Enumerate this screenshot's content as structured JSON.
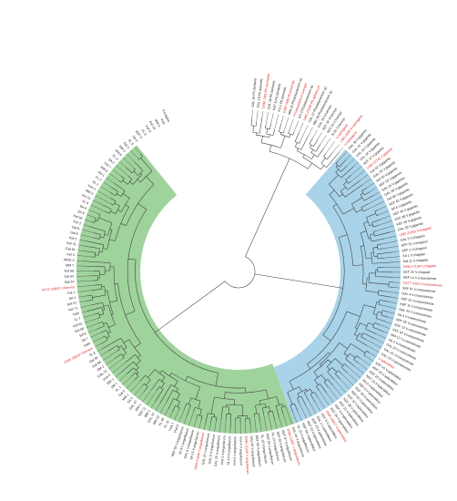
{
  "figure": {
    "type": "circular phylogenetic tree",
    "colors": {
      "green_clade": "#9fd39c",
      "blue_clade": "#a9d3e8",
      "reference_label": "#e02020",
      "isolate_label": "#1a1a1a",
      "branch": "#3a3a3a"
    }
  },
  "leaves": [
    {
      "label": "GAL 18 Ph.damsela",
      "ref": false
    },
    {
      "label": "GAL 19 Ph.damsela",
      "ref": false
    },
    {
      "label": "DSM 7482 Ph.damselae",
      "ref": true
    },
    {
      "label": "GAL 28 Ph.damsela",
      "ref": false
    },
    {
      "label": "KEF 8 Ph.damsela",
      "ref": false
    },
    {
      "label": "KS 2 Ph.damsela",
      "ref": false
    },
    {
      "label": "DSM 7483 Ph.piscicida",
      "ref": true
    },
    {
      "label": "MM 22 Photobacterium sp.",
      "ref": false
    },
    {
      "label": "Photobacterium swingsii",
      "ref": true
    },
    {
      "label": "KS 3 Photobacterium sp.",
      "ref": false
    },
    {
      "label": "LMG 25296 Ph.aphoticum",
      "ref": true
    },
    {
      "label": "GAL 12 Photobacterium sp.",
      "ref": false
    },
    {
      "label": "MM 19 Photobacterium sp.",
      "ref": false
    },
    {
      "label": "GAL 16 V.harveyi",
      "ref": false
    },
    {
      "label": "KEF 32 V.harveyi",
      "ref": false
    },
    {
      "label": "KEF 24 V.harveyi",
      "ref": false
    },
    {
      "label": "Al 35 V.harveyi",
      "ref": false
    },
    {
      "label": "V.natriegens",
      "ref": true
    },
    {
      "label": "LMG 2260 V.natriegens",
      "ref": true
    },
    {
      "label": "V.natriegens",
      "ref": true
    },
    {
      "label": "GAL 33 V.gigantis",
      "ref": false
    },
    {
      "label": "GAL 41 V.gigantis",
      "ref": false
    },
    {
      "label": "GAL 26 V.gigantis",
      "ref": false
    },
    {
      "label": "GAL 34 V.gigantis",
      "ref": false
    },
    {
      "label": "KEF 37 V.gigantis",
      "ref": false
    },
    {
      "label": "LMG 22741 V.gigantis",
      "ref": true
    },
    {
      "label": "Gal 42 V.gigantis",
      "ref": false
    },
    {
      "label": "GAL 35 V.gigantis",
      "ref": false
    },
    {
      "label": "Kef 30 V.gigantis",
      "ref": false
    },
    {
      "label": "KEF 53 V.gigantis",
      "ref": false
    },
    {
      "label": "GAL 24 V.gigantis",
      "ref": false
    },
    {
      "label": "GAL 50 V.gigantis",
      "ref": false
    },
    {
      "label": "Gal 48 V.gigantis",
      "ref": false
    },
    {
      "label": "KEF 43 V.gigantis",
      "ref": false
    },
    {
      "label": "SA 5 V.gigantis",
      "ref": false
    },
    {
      "label": "KEF 44 V.gigantis",
      "ref": false
    },
    {
      "label": "KEF 38 V.gigantis",
      "ref": false
    },
    {
      "label": "KEF 39 V.gigantis",
      "ref": false
    },
    {
      "label": "GAL 52 V.gigantis",
      "ref": false
    },
    {
      "label": "LMG 21353 V.chagasii",
      "ref": true
    },
    {
      "label": "GAL 5 V.chagasii",
      "ref": false
    },
    {
      "label": "KEF 51 V.chagasii",
      "ref": false
    },
    {
      "label": "KEF 2 V.chagasii",
      "ref": false
    },
    {
      "label": "SA 1 V.chagasii",
      "ref": false
    },
    {
      "label": "Gal 11 V.chagasii",
      "ref": false
    },
    {
      "label": "DSM 17138 V.chagasii",
      "ref": true
    },
    {
      "label": "KEF 22 V.chagasii",
      "ref": false
    },
    {
      "label": "KEF 14 V.crassostreae",
      "ref": false
    },
    {
      "label": "CECT 4203 V.crassostreae",
      "ref": true
    },
    {
      "label": "KEF 61 V.crassostreae",
      "ref": false
    },
    {
      "label": "GAL 4 V.crassostreae",
      "ref": false
    },
    {
      "label": "KEF 31 V.crassostreae",
      "ref": false
    },
    {
      "label": "KEF 11 V.crassostreae",
      "ref": false
    },
    {
      "label": "GAL 43 V.crassostreae",
      "ref": false
    },
    {
      "label": "SA 4 V.crassostreae",
      "ref": false
    },
    {
      "label": "KEF 35 V.crassostreae",
      "ref": false
    },
    {
      "label": "KEF 13 V.crassostreae",
      "ref": false
    },
    {
      "label": "KEF 42 V.crassostreae",
      "ref": false
    },
    {
      "label": "MM 12 V.crassostreae",
      "ref": false
    },
    {
      "label": "SA 2 V.crassostreae",
      "ref": false
    },
    {
      "label": "GAL 20 V.crassostreae",
      "ref": false
    },
    {
      "label": "GAL 21 V.crassostreae",
      "ref": false
    },
    {
      "label": "GAL 23 V.tasmaniensis",
      "ref": false
    },
    {
      "label": "V.splendidus",
      "ref": true
    },
    {
      "label": "KEF 15 V.splendidus",
      "ref": false
    },
    {
      "label": "KEF 10 V.splendidus",
      "ref": false
    },
    {
      "label": "KEF 26 V.splendidus",
      "ref": false
    },
    {
      "label": "KEF 23 V.splendidus",
      "ref": false
    },
    {
      "label": "SA 3 V.splendidus",
      "ref": false
    },
    {
      "label": "KEF 6 V.splendidus",
      "ref": false
    },
    {
      "label": "KEF 18 V.splendidus",
      "ref": false
    },
    {
      "label": "KEF 62 V.splendidus",
      "ref": false
    },
    {
      "label": "KEF 12 V.splendidus",
      "ref": false
    },
    {
      "label": "KEF 28 V.splendidus",
      "ref": false
    },
    {
      "label": "KEF 21 V.splendidus",
      "ref": false
    },
    {
      "label": "KEF 4 V.splendidus",
      "ref": false
    },
    {
      "label": "KEF 34 V.splendidus",
      "ref": false
    },
    {
      "label": "DSM 19607 V.splendidus",
      "ref": true
    },
    {
      "label": "KEF 9 V.splendidus",
      "ref": false
    },
    {
      "label": "GAL 1 V.splendidus",
      "ref": false
    },
    {
      "label": "KEF 29 V.splendidus",
      "ref": false
    },
    {
      "label": "KEF 52 V.splendidus",
      "ref": false
    },
    {
      "label": "KEF 58 V.splendidus",
      "ref": false
    },
    {
      "label": "SL 15 V.anguillarum",
      "ref": false
    },
    {
      "label": "GAL 44 V.anguillarum",
      "ref": false
    },
    {
      "label": "DSM 21597 V.anguillarum",
      "ref": true
    },
    {
      "label": "KEF 57 V.anguillarum",
      "ref": false
    },
    {
      "label": "KEF 63 V.anguillarum",
      "ref": false
    },
    {
      "label": "FL 13 V.anguillarum",
      "ref": false
    },
    {
      "label": "KEF 54 V.anguillarum",
      "ref": false
    },
    {
      "label": "SL 16 V.anguillarum",
      "ref": false
    },
    {
      "label": "KEF 50 V.anguillarum",
      "ref": false
    },
    {
      "label": "GAL 45 V.anguillarum",
      "ref": false
    },
    {
      "label": "DSM 22226 V.anguillarum",
      "ref": true
    },
    {
      "label": "VnA 4 V.anguillarum",
      "ref": false
    },
    {
      "label": "VnA 6 V.anguillarum",
      "ref": false
    },
    {
      "label": "SL 13 V.anguillarum",
      "ref": false
    },
    {
      "label": "VnA 3 V.anguillarum",
      "ref": false
    },
    {
      "label": "GAL 25 V.anguillarum",
      "ref": false
    },
    {
      "label": "GAL 9 V.anguillarum",
      "ref": false
    },
    {
      "label": "GAL 22 V.anguillarum",
      "ref": false
    },
    {
      "label": "DSM 21596 V.anguillarum",
      "ref": true
    },
    {
      "label": "SA 15 V.anguillarum",
      "ref": false
    },
    {
      "label": "GAL 6 V.anguillarum",
      "ref": false
    },
    {
      "label": "SL 9 V.anguillarum",
      "ref": false
    },
    {
      "label": "KEF 59 V.anguillarum",
      "ref": false
    },
    {
      "label": "VnA 9",
      "ref": false
    },
    {
      "label": "VnA 1",
      "ref": false
    },
    {
      "label": "FL 11",
      "ref": false
    },
    {
      "label": "FL 18",
      "ref": false
    },
    {
      "label": "MM 22",
      "ref": false
    },
    {
      "label": "GAL 37",
      "ref": false
    },
    {
      "label": "MM 1",
      "ref": false
    },
    {
      "label": "KEF 11",
      "ref": false
    },
    {
      "label": "MM 1",
      "ref": false
    },
    {
      "label": "GAL 47",
      "ref": false
    },
    {
      "label": "SA 3",
      "ref": false
    },
    {
      "label": "MM 1",
      "ref": false
    },
    {
      "label": "Gal 3",
      "ref": false
    },
    {
      "label": "FL 1",
      "ref": false
    },
    {
      "label": "SM 1",
      "ref": false
    },
    {
      "label": "MM 1",
      "ref": false
    },
    {
      "label": "VnA 5",
      "ref": false
    },
    {
      "label": "GAL 31",
      "ref": false
    },
    {
      "label": "SM 2",
      "ref": false
    },
    {
      "label": "Gal 68",
      "ref": false
    },
    {
      "label": "Gal 56",
      "ref": false
    },
    {
      "label": "SL 8",
      "ref": false
    },
    {
      "label": "DSM 19623 V.harveyi",
      "ref": true
    },
    {
      "label": "SwR",
      "ref": false
    },
    {
      "label": "SA 7",
      "ref": false
    },
    {
      "label": "SA 8",
      "ref": false
    },
    {
      "label": "Kef 68",
      "ref": false
    },
    {
      "label": "Kef 62",
      "ref": false
    },
    {
      "label": "FL 7",
      "ref": false
    },
    {
      "label": "KS5",
      "ref": false
    },
    {
      "label": "Kef 71",
      "ref": false
    },
    {
      "label": "Kef 67",
      "ref": false
    },
    {
      "label": "SA 1",
      "ref": false
    },
    {
      "label": "Gal 1",
      "ref": false
    },
    {
      "label": "ATCC 33842 V.harveyi",
      "ref": true
    },
    {
      "label": "Gal 24",
      "ref": false
    },
    {
      "label": "Gal 63",
      "ref": false
    },
    {
      "label": "Kef 69",
      "ref": false
    },
    {
      "label": "MM 7",
      "ref": false
    },
    {
      "label": "MDO 3",
      "ref": false
    },
    {
      "label": "Kef 5",
      "ref": false
    },
    {
      "label": "Gal 54",
      "ref": false
    },
    {
      "label": "Kef 75",
      "ref": false
    },
    {
      "label": "Kef 2",
      "ref": false
    },
    {
      "label": "Gal 6",
      "ref": false
    },
    {
      "label": "Gal 8",
      "ref": false
    },
    {
      "label": "Kef 3",
      "ref": false
    },
    {
      "label": "Kef 64",
      "ref": false
    },
    {
      "label": "SA 9",
      "ref": false
    },
    {
      "label": "SA 6",
      "ref": false
    },
    {
      "label": "FL 4",
      "ref": false
    },
    {
      "label": "Kef 11",
      "ref": false
    },
    {
      "label": "MM 3",
      "ref": false
    },
    {
      "label": "VnA 2",
      "ref": false
    },
    {
      "label": "SL 1",
      "ref": false
    },
    {
      "label": "FL 2",
      "ref": false
    },
    {
      "label": "KS 1",
      "ref": false
    },
    {
      "label": "MM 6",
      "ref": false
    },
    {
      "label": "Gal 7",
      "ref": false
    },
    {
      "label": "SA 2",
      "ref": false
    },
    {
      "label": "FL 3",
      "ref": false
    },
    {
      "label": "MM 8",
      "ref": false
    },
    {
      "label": "MM 2",
      "ref": false
    },
    {
      "label": "Gal 2",
      "ref": false
    },
    {
      "label": "FL 5",
      "ref": false
    },
    {
      "label": "SA 5",
      "ref": false
    },
    {
      "label": "KEF 5",
      "ref": false
    },
    {
      "label": "FL 6",
      "ref": false
    },
    {
      "label": "Kef 9",
      "ref": false
    },
    {
      "label": "Kef 10",
      "ref": false
    },
    {
      "label": "MM 4",
      "ref": false
    },
    {
      "label": "VnA",
      "ref": false
    },
    {
      "label": "V.vulgaris",
      "ref": false
    }
  ],
  "clades": {
    "blue": {
      "first": 20,
      "last": 83
    },
    "green": {
      "first": 84,
      "last": 170
    }
  }
}
